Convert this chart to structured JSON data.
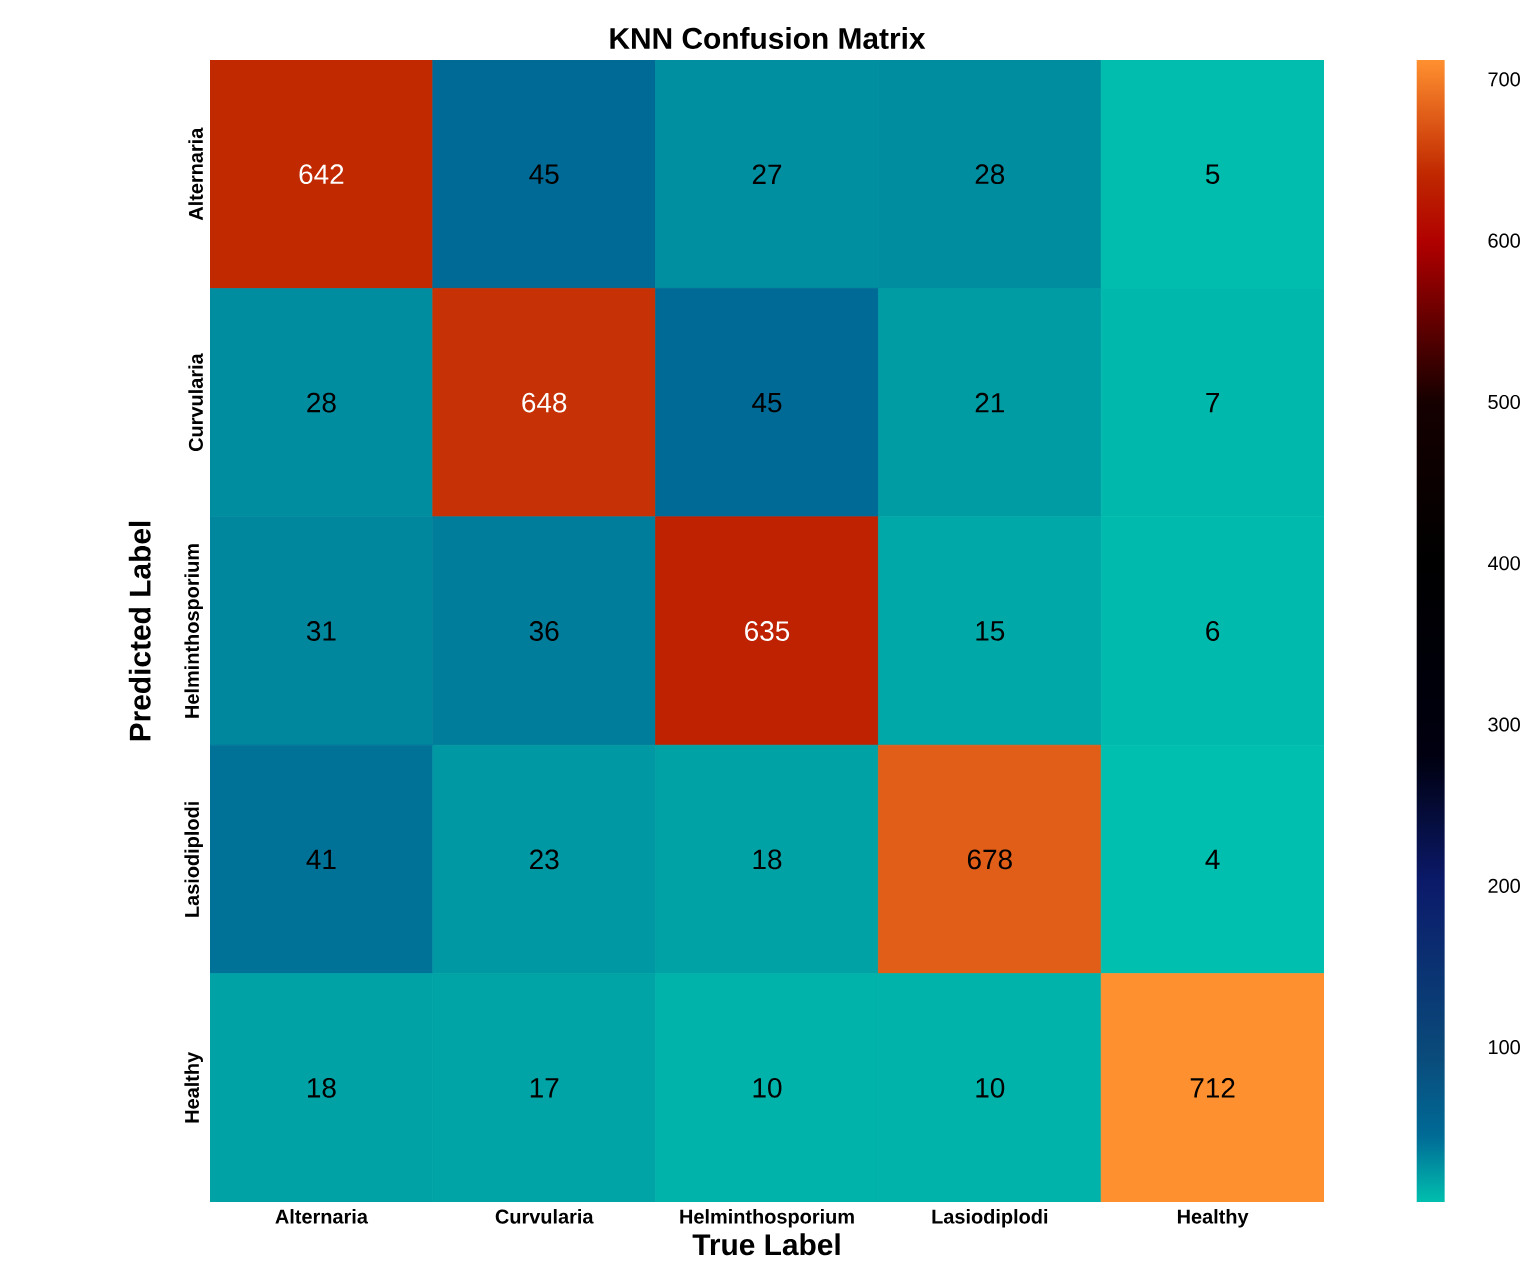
{
  "chart_data": {
    "type": "heatmap",
    "title": "KNN Confusion Matrix",
    "xlabel": "True Label",
    "ylabel": "Predicted Label",
    "categories": [
      "Alternaria",
      "Curvularia",
      "Helminthosporium",
      "Lasiodiplodi",
      "Healthy"
    ],
    "y_categories": [
      "Alternaria",
      "Curvularia",
      "Helminthosporium",
      "Lasiodiplodi",
      "Healthy"
    ],
    "cells": [
      [
        642,
        45,
        27,
        28,
        5
      ],
      [
        28,
        648,
        45,
        21,
        7
      ],
      [
        31,
        36,
        635,
        15,
        6
      ],
      [
        41,
        23,
        18,
        678,
        4
      ],
      [
        18,
        17,
        10,
        10,
        712
      ]
    ],
    "clim": [
      4,
      712
    ],
    "cticks": [
      100,
      200,
      300,
      400,
      500,
      600,
      700
    ],
    "data_labels": true
  }
}
